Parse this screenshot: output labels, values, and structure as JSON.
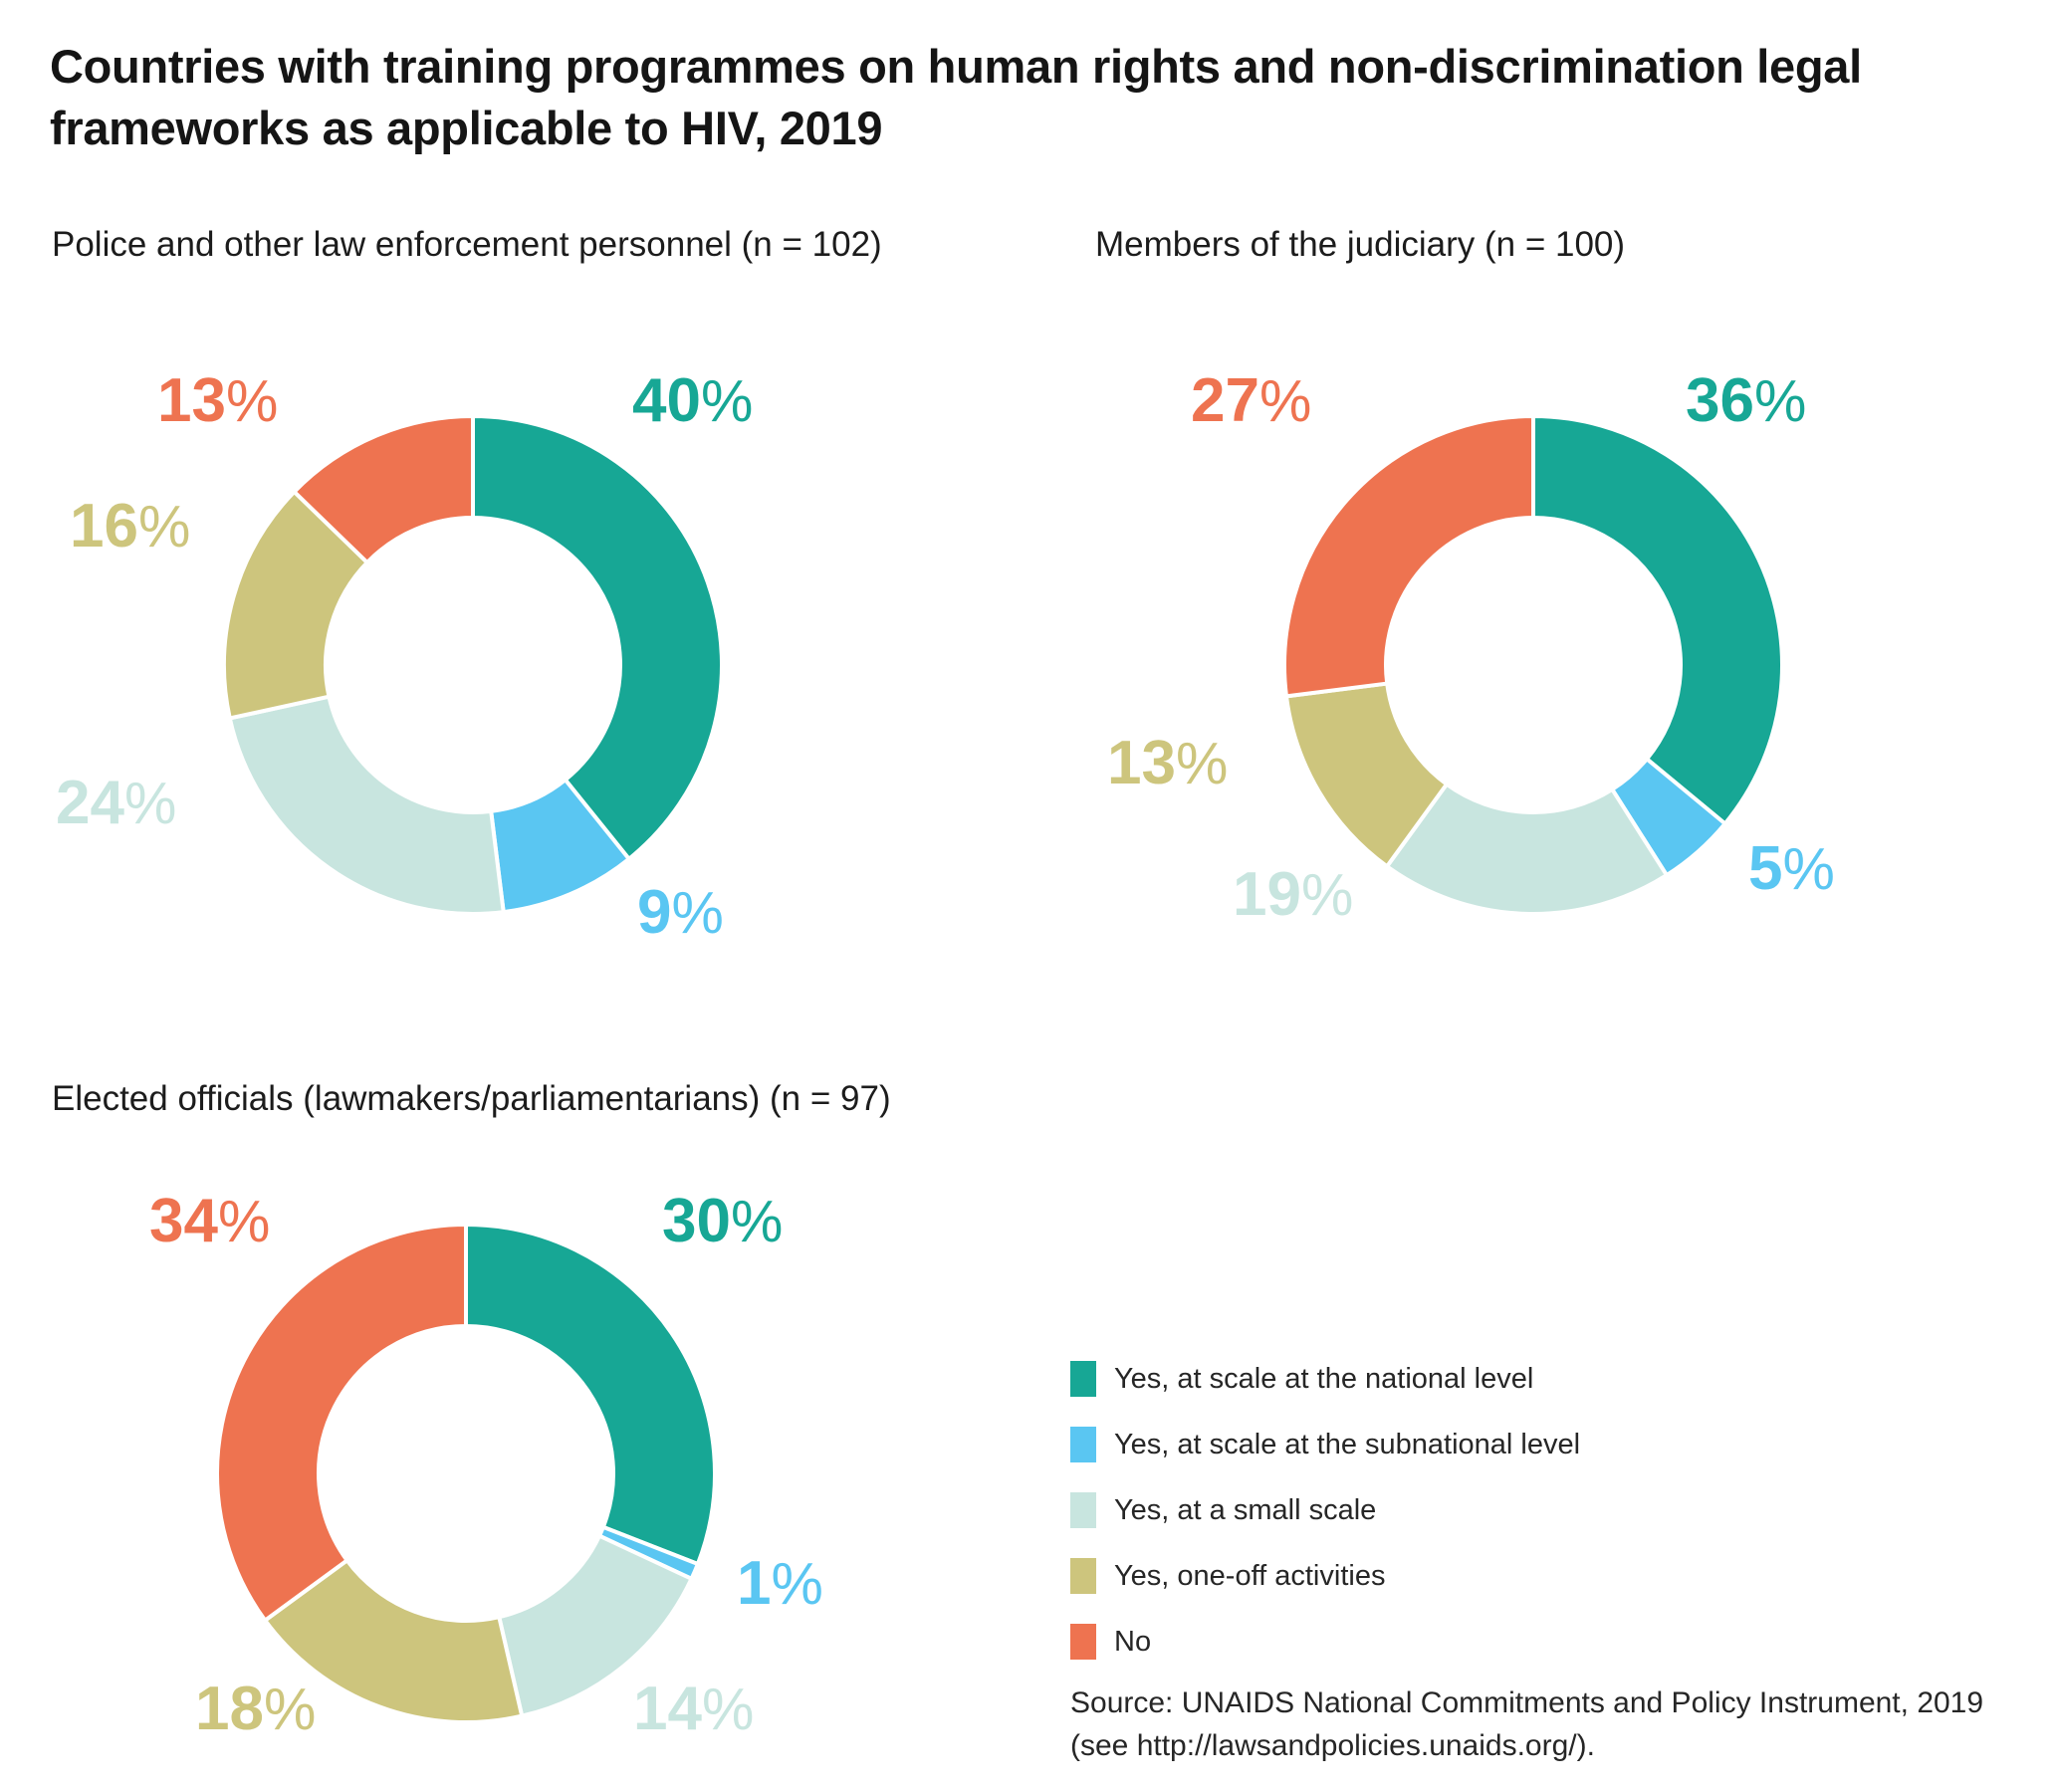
{
  "page": {
    "title": "Countries with training programmes on human rights and non-discrimination legal frameworks as applicable to HIV, 2019",
    "percent_sign": "%"
  },
  "legend": {
    "items": [
      {
        "key": "yes-national",
        "label": "Yes, at scale at the national level",
        "color": "#17A795"
      },
      {
        "key": "yes-subnational",
        "label": "Yes, at scale at the subnational level",
        "color": "#5AC6F2"
      },
      {
        "key": "yes-small-scale",
        "label": "Yes, at a small scale",
        "color": "#C8E5DF"
      },
      {
        "key": "yes-one-off",
        "label": "Yes, one-off activities",
        "color": "#CDC57D"
      },
      {
        "key": "no",
        "label": "No",
        "color": "#EE7350"
      }
    ]
  },
  "source": {
    "line1": "Source: UNAIDS National Commitments and Policy Instrument, 2019",
    "line2": "(see http://lawsandpolicies.unaids.org/)."
  },
  "chart_data": [
    {
      "type": "pie",
      "subtype": "donut",
      "title": "Police and other law enforcement personnel (n = 102)",
      "n": 102,
      "unit": "%",
      "start_angle_deg": -90,
      "direction": "clockwise",
      "categories": [
        "Yes, at scale at the national level",
        "Yes, at scale at the subnational level",
        "Yes, at a small scale",
        "Yes, one-off activities",
        "No"
      ],
      "values": [
        40,
        9,
        24,
        16,
        13
      ]
    },
    {
      "type": "pie",
      "subtype": "donut",
      "title": "Members of the judiciary (n = 100)",
      "n": 100,
      "unit": "%",
      "start_angle_deg": -90,
      "direction": "clockwise",
      "categories": [
        "Yes, at scale at the national level",
        "Yes, at scale at the subnational level",
        "Yes, at a small scale",
        "Yes, one-off activities",
        "No"
      ],
      "values": [
        36,
        5,
        19,
        13,
        27
      ]
    },
    {
      "type": "pie",
      "subtype": "donut",
      "title": "Elected officials (lawmakers/parliamentarians) (n = 97)",
      "n": 97,
      "unit": "%",
      "start_angle_deg": -90,
      "direction": "clockwise",
      "categories": [
        "Yes, at scale at the national level",
        "Yes, at scale at the subnational level",
        "Yes, at a small scale",
        "Yes, one-off activities",
        "No"
      ],
      "values": [
        30,
        1,
        14,
        18,
        34
      ]
    }
  ]
}
